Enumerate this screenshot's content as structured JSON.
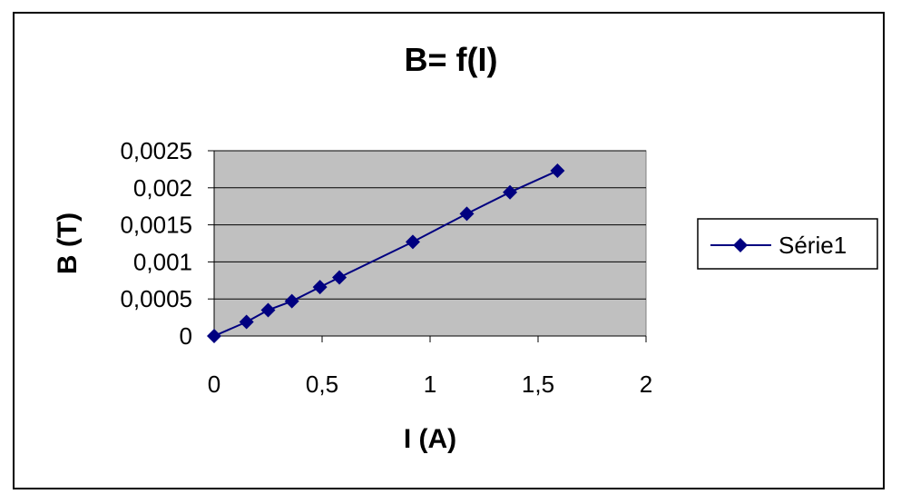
{
  "chart_data": {
    "type": "line",
    "title": "B= f(I)",
    "xlabel": "I (A)",
    "ylabel": "B (T)",
    "xlim": [
      0,
      2
    ],
    "ylim": [
      0,
      0.0025
    ],
    "x_ticks": [
      0,
      0.5,
      1,
      1.5,
      2
    ],
    "x_tick_labels": [
      "0",
      "0,5",
      "1",
      "1,5",
      "2"
    ],
    "y_ticks": [
      0,
      0.0005,
      0.001,
      0.0015,
      0.002,
      0.0025
    ],
    "y_tick_labels": [
      "0",
      "0,0005",
      "0,001",
      "0,0015",
      "0,002",
      "0,0025"
    ],
    "grid": "horizontal",
    "legend_position": "right",
    "series": [
      {
        "name": "Série1",
        "color": "#000080",
        "marker": "diamond",
        "x": [
          0,
          0.15,
          0.25,
          0.36,
          0.49,
          0.58,
          0.92,
          1.17,
          1.37,
          1.59
        ],
        "y": [
          0,
          0.00019,
          0.00035,
          0.00047,
          0.00066,
          0.00079,
          0.00127,
          0.00165,
          0.00194,
          0.00223
        ]
      }
    ],
    "plot_area_color": "#c0c0c0"
  }
}
